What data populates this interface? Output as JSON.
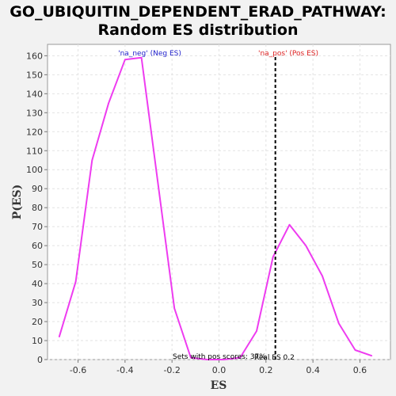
{
  "chart_data": {
    "type": "line",
    "title_line1": "GO_UBIQUITIN_DEPENDENT_ERAD_PATHWAY:",
    "title_line2": "Random ES distribution",
    "xlabel": "ES",
    "ylabel": "P(ES)",
    "xlim": [
      -0.73,
      0.73
    ],
    "ylim": [
      0,
      166
    ],
    "xticks": [
      -0.6,
      -0.4,
      -0.2,
      0.0,
      0.2,
      0.4,
      0.6
    ],
    "xtick_labels": [
      "-0.6",
      "-0.4",
      "-0.2",
      "0.0",
      "0.2",
      "0.4",
      "0.6"
    ],
    "yticks": [
      0,
      10,
      20,
      30,
      40,
      50,
      60,
      70,
      80,
      90,
      100,
      110,
      120,
      130,
      140,
      150,
      160
    ],
    "ytick_labels": [
      "0",
      "10",
      "20",
      "30",
      "40",
      "50",
      "60",
      "70",
      "80",
      "90",
      "100",
      "110",
      "120",
      "130",
      "140",
      "150",
      "160"
    ],
    "grid": true,
    "series": [
      {
        "color": "#ee3cf0",
        "x": [
          -0.68,
          -0.61,
          -0.54,
          -0.47,
          -0.4,
          -0.33,
          -0.26,
          -0.19,
          -0.12,
          -0.05,
          0.02,
          0.09,
          0.16,
          0.23,
          0.3,
          0.37,
          0.44,
          0.51,
          0.58,
          0.65
        ],
        "y": [
          12,
          41,
          105,
          135,
          158,
          159,
          93,
          27,
          1,
          0,
          0,
          1,
          15,
          54,
          71,
          60,
          44,
          19,
          5,
          2
        ]
      }
    ],
    "reference_line": {
      "x": 0.24,
      "color": "#000000",
      "style": "dashed"
    },
    "annotations": {
      "neg_label": "'na_neg' (Neg ES)",
      "neg_color": "#2222cc",
      "pos_label": "'na_pos' (Pos ES)",
      "pos_color": "#dd2222",
      "sets_label": "Sets with pos scores: 37%",
      "real_es_label": "Real ES 0.2"
    }
  }
}
